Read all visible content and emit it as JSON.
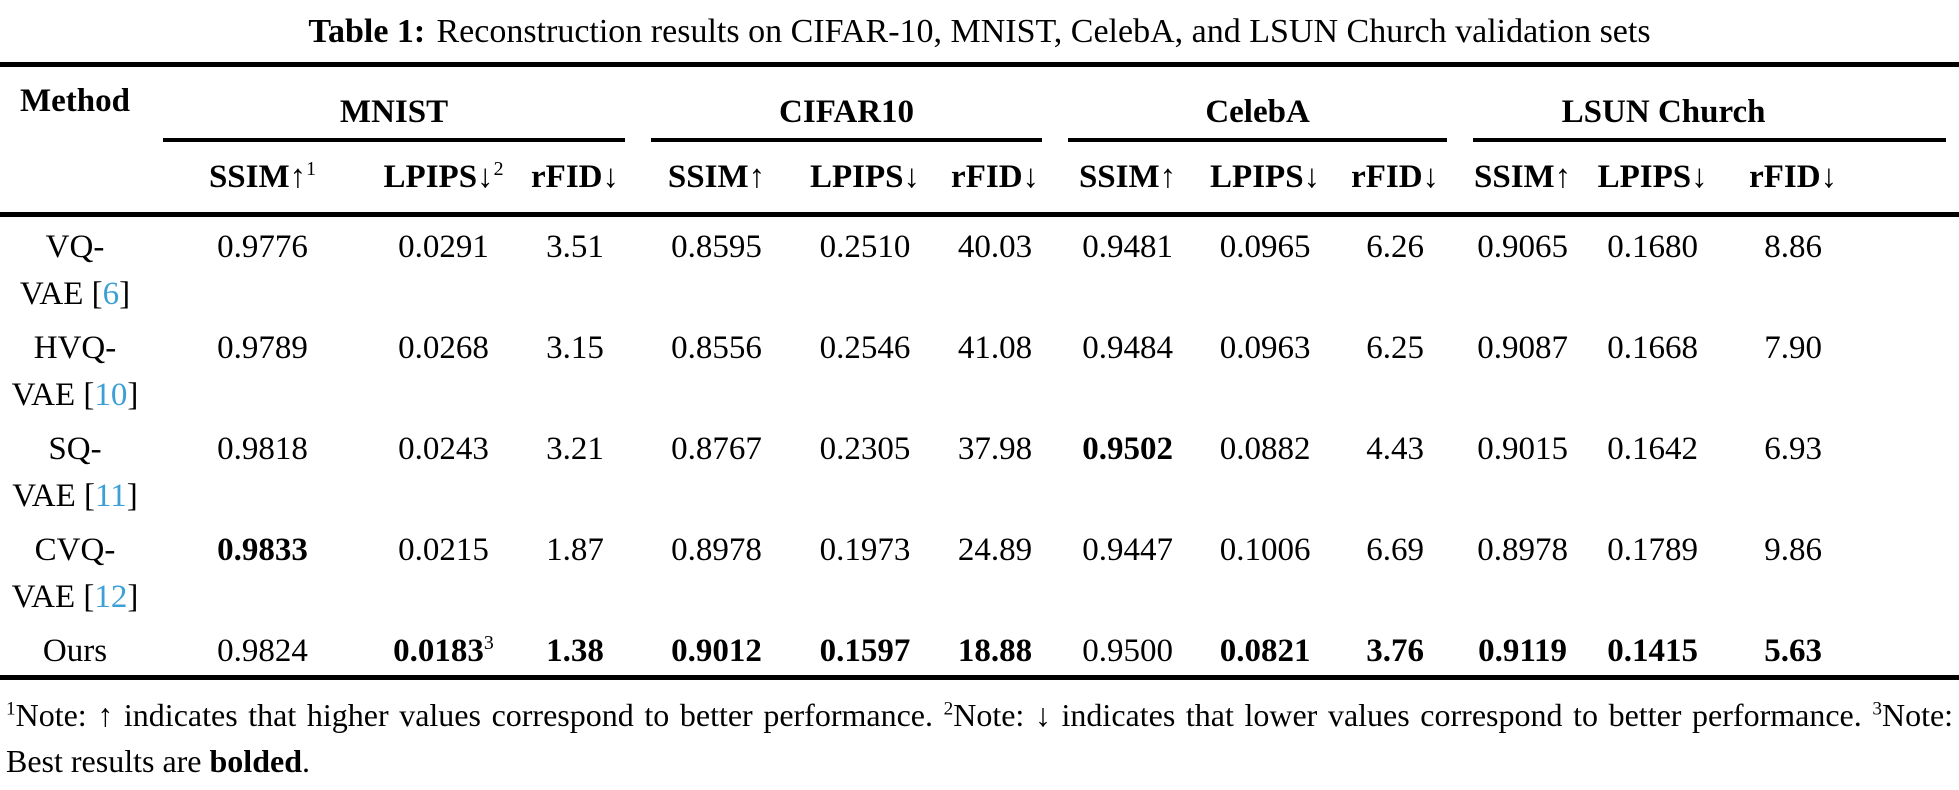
{
  "caption": {
    "label": "Table 1:",
    "text": "Reconstruction results on CIFAR-10, MNIST, CelebA, and LSUN Church validation sets"
  },
  "table": {
    "method_header": "Method",
    "groups": [
      {
        "name": "MNIST",
        "metrics": [
          {
            "label": "SSIM",
            "arrow": "↑",
            "sup": "1"
          },
          {
            "label": "LPIPS",
            "arrow": "↓",
            "sup": "2"
          },
          {
            "label": "rFID",
            "arrow": "↓",
            "sup": ""
          }
        ]
      },
      {
        "name": "CIFAR10",
        "metrics": [
          {
            "label": "SSIM",
            "arrow": "↑",
            "sup": ""
          },
          {
            "label": "LPIPS",
            "arrow": "↓",
            "sup": ""
          },
          {
            "label": "rFID",
            "arrow": "↓",
            "sup": ""
          }
        ]
      },
      {
        "name": "CelebA",
        "metrics": [
          {
            "label": "SSIM",
            "arrow": "↑",
            "sup": ""
          },
          {
            "label": "LPIPS",
            "arrow": "↓",
            "sup": ""
          },
          {
            "label": "rFID",
            "arrow": "↓",
            "sup": ""
          }
        ]
      },
      {
        "name": "LSUN Church",
        "metrics": [
          {
            "label": "SSIM",
            "arrow": "↑",
            "sup": ""
          },
          {
            "label": "LPIPS",
            "arrow": "↓",
            "sup": ""
          },
          {
            "label": "rFID",
            "arrow": "↓",
            "sup": ""
          }
        ]
      }
    ],
    "rows": [
      {
        "method": {
          "top": "VQ-",
          "bottom": "VAE",
          "cite": "6"
        },
        "values": [
          {
            "v": "0.9776"
          },
          {
            "v": "0.0291"
          },
          {
            "v": "3.51"
          },
          {
            "v": "0.8595"
          },
          {
            "v": "0.2510"
          },
          {
            "v": "40.03"
          },
          {
            "v": "0.9481"
          },
          {
            "v": "0.0965"
          },
          {
            "v": "6.26"
          },
          {
            "v": "0.9065"
          },
          {
            "v": "0.1680"
          },
          {
            "v": "8.86"
          }
        ]
      },
      {
        "method": {
          "top": "HVQ-",
          "bottom": "VAE",
          "cite": "10"
        },
        "values": [
          {
            "v": "0.9789"
          },
          {
            "v": "0.0268"
          },
          {
            "v": "3.15"
          },
          {
            "v": "0.8556"
          },
          {
            "v": "0.2546"
          },
          {
            "v": "41.08"
          },
          {
            "v": "0.9484"
          },
          {
            "v": "0.0963"
          },
          {
            "v": "6.25"
          },
          {
            "v": "0.9087"
          },
          {
            "v": "0.1668"
          },
          {
            "v": "7.90"
          }
        ]
      },
      {
        "method": {
          "top": "SQ-",
          "bottom": "VAE",
          "cite": "11"
        },
        "values": [
          {
            "v": "0.9818"
          },
          {
            "v": "0.0243"
          },
          {
            "v": "3.21"
          },
          {
            "v": "0.8767"
          },
          {
            "v": "0.2305"
          },
          {
            "v": "37.98"
          },
          {
            "v": "0.9502",
            "bold": true
          },
          {
            "v": "0.0882"
          },
          {
            "v": "4.43"
          },
          {
            "v": "0.9015"
          },
          {
            "v": "0.1642"
          },
          {
            "v": "6.93"
          }
        ]
      },
      {
        "method": {
          "top": "CVQ-",
          "bottom": "VAE",
          "cite": "12"
        },
        "values": [
          {
            "v": "0.9833",
            "bold": true
          },
          {
            "v": "0.0215"
          },
          {
            "v": "1.87"
          },
          {
            "v": "0.8978"
          },
          {
            "v": "0.1973"
          },
          {
            "v": "24.89"
          },
          {
            "v": "0.9447"
          },
          {
            "v": "0.1006"
          },
          {
            "v": "6.69"
          },
          {
            "v": "0.8978"
          },
          {
            "v": "0.1789"
          },
          {
            "v": "9.86"
          }
        ]
      },
      {
        "method": {
          "top": "Ours"
        },
        "values": [
          {
            "v": "0.9824"
          },
          {
            "v": "0.0183",
            "bold": true,
            "sup": "3"
          },
          {
            "v": "1.38",
            "bold": true
          },
          {
            "v": "0.9012",
            "bold": true
          },
          {
            "v": "0.1597",
            "bold": true
          },
          {
            "v": "18.88",
            "bold": true
          },
          {
            "v": "0.9500"
          },
          {
            "v": "0.0821",
            "bold": true
          },
          {
            "v": "3.76",
            "bold": true
          },
          {
            "v": "0.9119",
            "bold": true
          },
          {
            "v": "0.1415",
            "bold": true
          },
          {
            "v": "5.63",
            "bold": true
          }
        ]
      }
    ]
  },
  "footnotes": [
    {
      "sup": "1",
      "text": "Note: ↑ indicates that higher values correspond to better performance."
    },
    {
      "sup": "2",
      "text": "Note: ↓ indicates that lower values correspond to better performance."
    },
    {
      "sup": "3",
      "text": "Note: Best results are ",
      "bold_word": "bolded",
      "tail": "."
    }
  ],
  "colors": {
    "citation_link": "#3ca0d7",
    "text": "#000000",
    "rule": "#000000",
    "background": "#ffffff"
  }
}
